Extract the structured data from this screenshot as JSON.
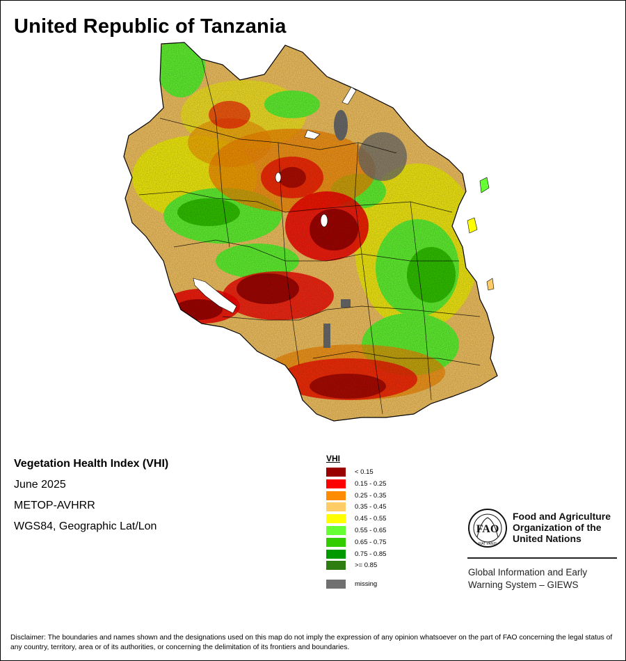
{
  "title": "United Republic of Tanzania",
  "info": {
    "index_name": "Vegetation Health Index (VHI)",
    "period": "June 2025",
    "sensor": "METOP-AVHRR",
    "projection": "WGS84, Geographic Lat/Lon"
  },
  "legend": {
    "title": "VHI",
    "classes": [
      {
        "label": "< 0.15",
        "color": "#990000"
      },
      {
        "label": "0.15 - 0.25",
        "color": "#ff0000"
      },
      {
        "label": "0.25 - 0.35",
        "color": "#ff8c00"
      },
      {
        "label": "0.35 - 0.45",
        "color": "#ffcc66"
      },
      {
        "label": "0.45 - 0.55",
        "color": "#ffff00"
      },
      {
        "label": "0.55 - 0.65",
        "color": "#66ff33"
      },
      {
        "label": "0.65 - 0.75",
        "color": "#33cc00"
      },
      {
        "label": "0.75 - 0.85",
        "color": "#009900"
      },
      {
        "label": ">= 0.85",
        "color": "#2e7d10"
      }
    ],
    "missing": {
      "label": "missing",
      "color": "#707070"
    }
  },
  "fao": {
    "emblem_text": "FAO",
    "motto": "FIAT PANIS",
    "org_line1": "Food and Agriculture",
    "org_line2": "Organization of the",
    "org_line3": "United Nations",
    "giews_line1": "Global Information and Early",
    "giews_line2": "Warning System – GIEWS"
  },
  "disclaimer": "Disclaimer: The boundaries and names shown and the designations used on this map do not imply the expression of any opinion whatsoever on the part of FAO concerning the legal status of any country, territory, area or of its authorities, or concerning the delimitation of its frontiers and boundaries."
}
